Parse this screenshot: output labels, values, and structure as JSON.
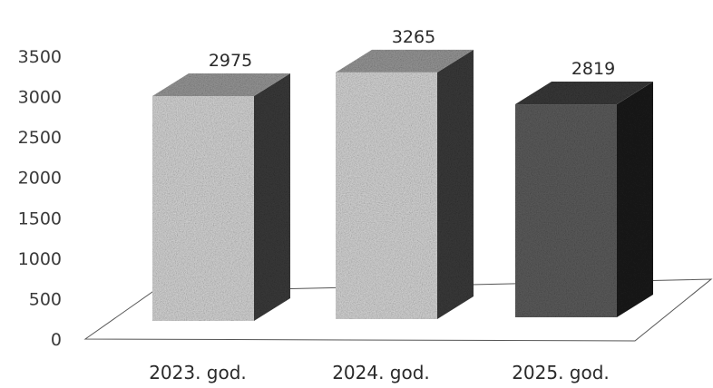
{
  "chart_data": {
    "type": "bar",
    "style": "3d-column",
    "title": "",
    "xlabel": "",
    "ylabel": "",
    "categories": [
      "2023. god.",
      "2024. god.",
      "2025. god."
    ],
    "values": [
      2975,
      3265,
      2819
    ],
    "ylim": [
      0,
      3500
    ],
    "yticks": [
      0,
      500,
      1000,
      1500,
      2000,
      2500,
      3000,
      3500
    ],
    "tick_labels": [
      "0",
      "500",
      "1000",
      "1500",
      "2000",
      "2500",
      "3000",
      "3500"
    ],
    "grid": false,
    "legend": "none",
    "colors": {
      "bar_light_front": "#d9d9d9",
      "bar_light_side": "#3c3c3c",
      "bar_light_top": "#9a9a9a",
      "bar_dark_front": "#5e5e5e",
      "bar_dark_side": "#1c1c1c",
      "bar_dark_top": "#3a3a3a"
    }
  }
}
